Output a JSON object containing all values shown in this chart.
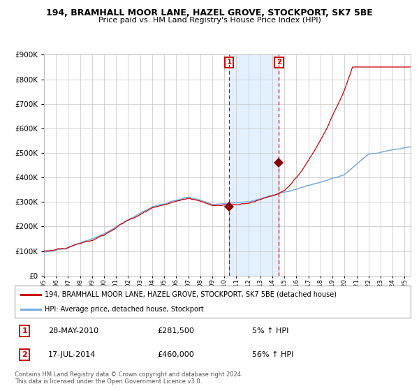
{
  "title": "194, BRAMHALL MOOR LANE, HAZEL GROVE, STOCKPORT, SK7 5BE",
  "subtitle": "Price paid vs. HM Land Registry's House Price Index (HPI)",
  "legend_line1": "194, BRAMHALL MOOR LANE, HAZEL GROVE, STOCKPORT, SK7 5BE (detached house)",
  "legend_line2": "HPI: Average price, detached house, Stockport",
  "annotation1_date": "28-MAY-2010",
  "annotation1_price": "£281,500",
  "annotation1_pct": "5% ↑ HPI",
  "annotation2_date": "17-JUL-2014",
  "annotation2_price": "£460,000",
  "annotation2_pct": "56% ↑ HPI",
  "footer": "Contains HM Land Registry data © Crown copyright and database right 2024.\nThis data is licensed under the Open Government Licence v3.0.",
  "hpi_color": "#7aaadd",
  "price_color": "#cc0000",
  "marker_color": "#880000",
  "bg_color": "#ffffff",
  "grid_color": "#cccccc",
  "shade_color": "#ddeeff",
  "annotation_box_color": "#cc0000",
  "ylim_max": 900000,
  "sale1_year": 2010.41,
  "sale1_price": 281500,
  "sale2_year": 2014.54,
  "sale2_price": 460000
}
